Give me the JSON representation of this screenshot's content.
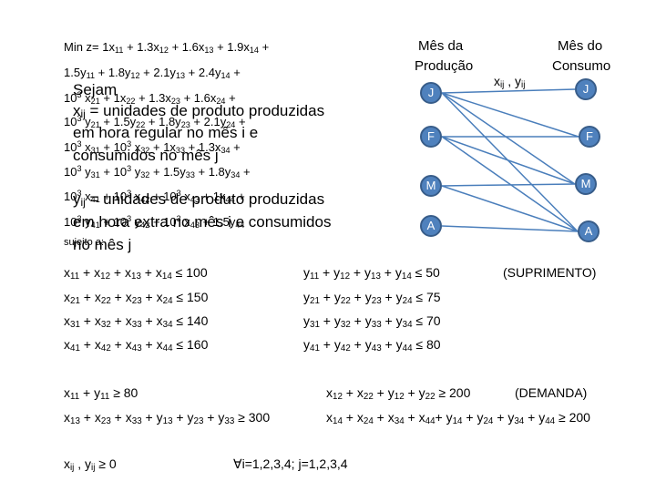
{
  "objective": {
    "line1": "Min z= 1x11 + 1.3x12 + 1.6x13 + 1.9x14 +",
    "line2": "1.5y11 + 1.8y12 + 2.1y13 + 2.4y14 +",
    "line3": "103 x21 + 1x22 + 1.3x23 + 1.6x24 +",
    "line4": "103 y21 + 1.5y22 + 1.8y23 + 2.1y24 +",
    "line5": "103 x31 + 103 x32 + 1x33 + 1.3x34 +",
    "line6": "103 y31 + 103 y32 + 1.5y33 + 1.8y34 +",
    "line7": "103 x41 + 103 x42 + 103 x43 + 1x44 +",
    "line8": "103 y41 + 103 y42 + 103 x43 + 1.5y44",
    "subject": "sujeito a:"
  },
  "definitions": {
    "sejam": "Sejam",
    "x_def_1": "xij = unidades de produto produzidas",
    "x_def_2": "em hora regular no mês i e",
    "x_def_3": "consumidos no mês j",
    "y_def_1": "yij = unidades de produto produzidas",
    "y_def_2": "em hora extra no mês i e consumidos",
    "y_def_3": "no mês j"
  },
  "network": {
    "prod_header": [
      "Mês da",
      "Produção"
    ],
    "cons_header": [
      "Mês do",
      "Consumo"
    ],
    "var_label": "xij , yij",
    "prod_nodes": [
      "J",
      "F",
      "M",
      "A"
    ],
    "cons_nodes": [
      "J",
      "F",
      "M",
      "A"
    ],
    "node_color": "#4f81bd",
    "line_color": "#4a7ebb"
  },
  "constraints": {
    "x_supply": [
      "x11 + x12 + x13 + x14 ≤ 100",
      "x21 + x22 + x23 + x24 ≤ 150",
      "x31 + x32 + x33 + x34 ≤ 140",
      "x41 + x42 + x43 + x44 ≤ 160"
    ],
    "y_supply": [
      "y11 + y12 + y13 + y14 ≤ 50",
      "y21 + y22 + y23 + y24 ≤ 75",
      "y31 + y32 + y33 + y34 ≤ 70",
      "y41 + y42 + y43 + y44 ≤ 80"
    ],
    "supply_tag": "(SUPRIMENTO)",
    "demand_1": "x11 + y11 ≥ 80",
    "demand_2": "x12 + x22 + y12 + y22 ≥ 200",
    "demand_3": "x13 + x23 + x33 + y13 + y23 + y33 ≥ 300",
    "demand_4": "x14 + x24 + x34 + x44+ y14 + y24 + y34 + y44 ≥ 200",
    "demand_tag": "(DEMANDA)",
    "nonneg": "xij , yij ≥ 0",
    "domain": "∀i=1,2,3,4; j=1,2,3,4"
  }
}
